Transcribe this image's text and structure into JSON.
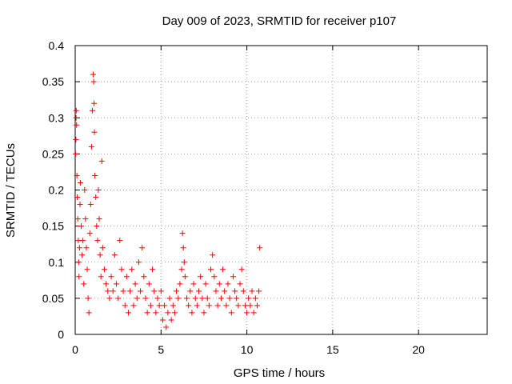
{
  "chart_data": {
    "type": "scatter",
    "title": "Day 009 of 2023, SRMTID for receiver p107",
    "xlabel": "GPS time / hours",
    "ylabel": "SRMTID / TECUs",
    "xlim": [
      0,
      24
    ],
    "ylim": [
      0,
      0.4
    ],
    "xticks": [
      0,
      5,
      10,
      15,
      20
    ],
    "yticks": [
      0,
      0.05,
      0.1,
      0.15,
      0.2,
      0.25,
      0.3,
      0.35,
      0.4
    ],
    "xtick_labels": [
      "0",
      "5",
      "10",
      "15",
      "20"
    ],
    "ytick_labels": [
      "0",
      "0.05",
      "0.1",
      "0.15",
      "0.2",
      "0.25",
      "0.3",
      "0.35",
      "0.4"
    ],
    "grid": true,
    "marker": "+",
    "color": "#ff0000",
    "series": [
      {
        "name": "SRMTID",
        "points": [
          [
            0.02,
            0.25
          ],
          [
            0.04,
            0.27
          ],
          [
            0.05,
            0.3
          ],
          [
            0.06,
            0.31
          ],
          [
            0.08,
            0.29
          ],
          [
            0.1,
            0.22
          ],
          [
            0.12,
            0.19
          ],
          [
            0.15,
            0.16
          ],
          [
            0.18,
            0.13
          ],
          [
            0.2,
            0.1
          ],
          [
            0.22,
            0.08
          ],
          [
            0.25,
            0.12
          ],
          [
            0.28,
            0.18
          ],
          [
            0.3,
            0.21
          ],
          [
            0.35,
            0.15
          ],
          [
            0.4,
            0.11
          ],
          [
            0.45,
            0.13
          ],
          [
            0.5,
            0.07
          ],
          [
            0.55,
            0.2
          ],
          [
            0.6,
            0.16
          ],
          [
            0.65,
            0.12
          ],
          [
            0.7,
            0.09
          ],
          [
            0.75,
            0.05
          ],
          [
            0.8,
            0.03
          ],
          [
            0.85,
            0.14
          ],
          [
            0.9,
            0.18
          ],
          [
            0.95,
            0.26
          ],
          [
            1.0,
            0.31
          ],
          [
            1.05,
            0.36
          ],
          [
            1.08,
            0.35
          ],
          [
            1.1,
            0.32
          ],
          [
            1.12,
            0.28
          ],
          [
            1.15,
            0.22
          ],
          [
            1.2,
            0.19
          ],
          [
            1.25,
            0.15
          ],
          [
            1.3,
            0.13
          ],
          [
            1.35,
            0.2
          ],
          [
            1.4,
            0.16
          ],
          [
            1.45,
            0.11
          ],
          [
            1.5,
            0.08
          ],
          [
            1.55,
            0.24
          ],
          [
            1.6,
            0.12
          ],
          [
            1.7,
            0.09
          ],
          [
            1.8,
            0.07
          ],
          [
            1.9,
            0.06
          ],
          [
            2.0,
            0.05
          ],
          [
            2.1,
            0.08
          ],
          [
            2.2,
            0.06
          ],
          [
            2.3,
            0.11
          ],
          [
            2.4,
            0.07
          ],
          [
            2.5,
            0.05
          ],
          [
            2.6,
            0.13
          ],
          [
            2.7,
            0.09
          ],
          [
            2.8,
            0.06
          ],
          [
            2.9,
            0.04
          ],
          [
            3.0,
            0.08
          ],
          [
            3.1,
            0.03
          ],
          [
            3.2,
            0.06
          ],
          [
            3.3,
            0.09
          ],
          [
            3.4,
            0.04
          ],
          [
            3.5,
            0.07
          ],
          [
            3.6,
            0.05
          ],
          [
            3.7,
            0.1
          ],
          [
            3.8,
            0.06
          ],
          [
            3.9,
            0.12
          ],
          [
            4.0,
            0.08
          ],
          [
            4.1,
            0.05
          ],
          [
            4.2,
            0.03
          ],
          [
            4.3,
            0.07
          ],
          [
            4.4,
            0.04
          ],
          [
            4.5,
            0.09
          ],
          [
            4.6,
            0.06
          ],
          [
            4.7,
            0.03
          ],
          [
            4.8,
            0.05
          ],
          [
            4.9,
            0.04
          ],
          [
            5.0,
            0.06
          ],
          [
            5.1,
            0.02
          ],
          [
            5.2,
            0.04
          ],
          [
            5.3,
            0.01
          ],
          [
            5.4,
            0.03
          ],
          [
            5.5,
            0.05
          ],
          [
            5.6,
            0.02
          ],
          [
            5.7,
            0.04
          ],
          [
            5.8,
            0.03
          ],
          [
            5.9,
            0.06
          ],
          [
            6.0,
            0.05
          ],
          [
            6.1,
            0.07
          ],
          [
            6.2,
            0.09
          ],
          [
            6.25,
            0.14
          ],
          [
            6.3,
            0.12
          ],
          [
            6.35,
            0.1
          ],
          [
            6.4,
            0.08
          ],
          [
            6.5,
            0.05
          ],
          [
            6.6,
            0.04
          ],
          [
            6.7,
            0.06
          ],
          [
            6.8,
            0.03
          ],
          [
            6.9,
            0.07
          ],
          [
            7.0,
            0.05
          ],
          [
            7.1,
            0.04
          ],
          [
            7.2,
            0.06
          ],
          [
            7.3,
            0.08
          ],
          [
            7.4,
            0.05
          ],
          [
            7.5,
            0.03
          ],
          [
            7.6,
            0.07
          ],
          [
            7.7,
            0.05
          ],
          [
            7.8,
            0.04
          ],
          [
            7.9,
            0.09
          ],
          [
            8.0,
            0.11
          ],
          [
            8.1,
            0.08
          ],
          [
            8.2,
            0.06
          ],
          [
            8.3,
            0.04
          ],
          [
            8.4,
            0.07
          ],
          [
            8.5,
            0.05
          ],
          [
            8.6,
            0.09
          ],
          [
            8.7,
            0.06
          ],
          [
            8.8,
            0.04
          ],
          [
            8.9,
            0.07
          ],
          [
            9.0,
            0.05
          ],
          [
            9.1,
            0.03
          ],
          [
            9.2,
            0.08
          ],
          [
            9.3,
            0.06
          ],
          [
            9.4,
            0.05
          ],
          [
            9.5,
            0.04
          ],
          [
            9.6,
            0.07
          ],
          [
            9.7,
            0.09
          ],
          [
            9.8,
            0.06
          ],
          [
            9.9,
            0.04
          ],
          [
            10.0,
            0.03
          ],
          [
            10.1,
            0.05
          ],
          [
            10.2,
            0.04
          ],
          [
            10.3,
            0.06
          ],
          [
            10.4,
            0.03
          ],
          [
            10.5,
            0.05
          ],
          [
            10.6,
            0.04
          ],
          [
            10.7,
            0.06
          ],
          [
            10.75,
            0.12
          ]
        ]
      }
    ]
  }
}
